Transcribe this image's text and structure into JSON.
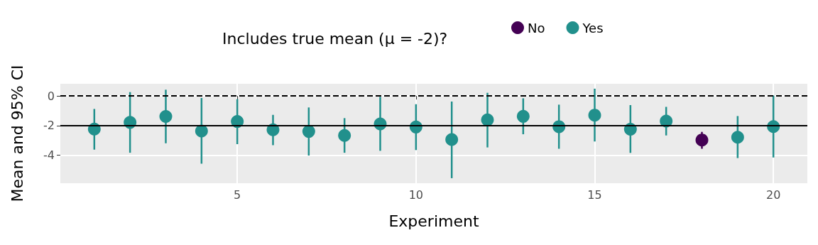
{
  "chart_data": {
    "type": "scatter",
    "legend_title": "Includes true mean (μ = -2)?",
    "xlabel": "Experiment",
    "ylabel": "Mean and 95% CI",
    "xlim": [
      0.05,
      20.95
    ],
    "xticks": [
      5,
      10,
      15,
      20
    ],
    "ylim": [
      -5.9,
      0.82
    ],
    "yticks": [
      0,
      -2,
      -4
    ],
    "grid": true,
    "legend": "top",
    "marker": "circle",
    "ref_lines": [
      {
        "axis": "y",
        "value": 0,
        "line_style": "dashed",
        "color": "#000000"
      },
      {
        "axis": "y",
        "value": -2,
        "line_style": "solid",
        "color": "#000000"
      }
    ],
    "series": [
      {
        "name": "No",
        "color": "#440154",
        "x": [
          18
        ],
        "values": [
          -2.98
        ],
        "errors": [
          [
            -3.57,
            -2.43
          ]
        ]
      },
      {
        "name": "Yes",
        "color": "#21908c",
        "x": [
          1,
          2,
          3,
          4,
          5,
          6,
          7,
          8,
          9,
          10,
          11,
          12,
          13,
          14,
          15,
          16,
          17,
          19,
          20
        ],
        "values": [
          -2.24,
          -1.79,
          -1.39,
          -2.37,
          -1.73,
          -2.29,
          -2.4,
          -2.67,
          -1.89,
          -2.1,
          -2.95,
          -1.62,
          -1.38,
          -2.08,
          -1.3,
          -2.25,
          -1.7,
          -2.79,
          -2.07
        ],
        "errors": [
          [
            -3.63,
            -0.88
          ],
          [
            -3.84,
            0.26
          ],
          [
            -3.2,
            0.42
          ],
          [
            -4.58,
            -0.14
          ],
          [
            -3.26,
            -0.22
          ],
          [
            -3.33,
            -1.28
          ],
          [
            -4.03,
            -0.78
          ],
          [
            -3.84,
            -1.5
          ],
          [
            -3.71,
            -0.06
          ],
          [
            -3.66,
            -0.56
          ],
          [
            -5.56,
            -0.38
          ],
          [
            -3.48,
            0.21
          ],
          [
            -2.59,
            -0.16
          ],
          [
            -3.57,
            -0.59
          ],
          [
            -3.08,
            0.49
          ],
          [
            -3.85,
            -0.62
          ],
          [
            -2.67,
            -0.74
          ],
          [
            -4.2,
            -1.36
          ],
          [
            -4.16,
            0.03
          ]
        ]
      }
    ]
  }
}
